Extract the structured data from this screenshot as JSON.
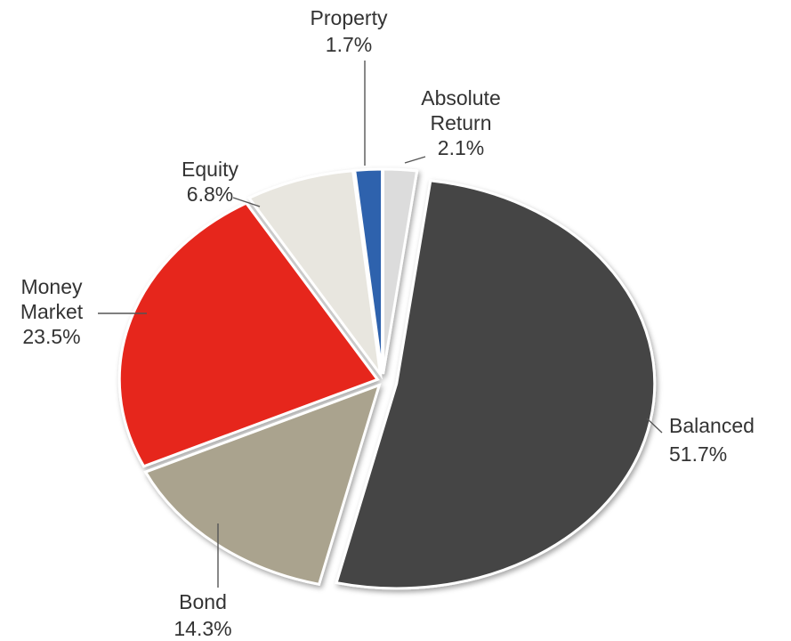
{
  "chart_data": {
    "type": "pie",
    "title": "",
    "legend": "none",
    "slices": [
      {
        "label": "Balanced",
        "percent_label": "51.7%",
        "value": 51.7,
        "color": "#454545"
      },
      {
        "label": "Bond",
        "percent_label": "14.3%",
        "value": 14.3,
        "color": "#aaa38e"
      },
      {
        "label": "Money Market",
        "label_lines": [
          "Money",
          "Market"
        ],
        "percent_label": "23.5%",
        "value": 23.5,
        "color": "#e6281e"
      },
      {
        "label": "Equity",
        "percent_label": "6.8%",
        "value": 6.8,
        "color": "#e8e6df"
      },
      {
        "label": "Property",
        "percent_label": "1.7%",
        "value": 1.7,
        "color": "#2e62ad"
      },
      {
        "label": "Absolute Return",
        "label_lines": [
          "Absolute",
          "Return"
        ],
        "percent_label": "2.1%",
        "value": 2.1,
        "color": "#dcdcdc"
      }
    ]
  }
}
